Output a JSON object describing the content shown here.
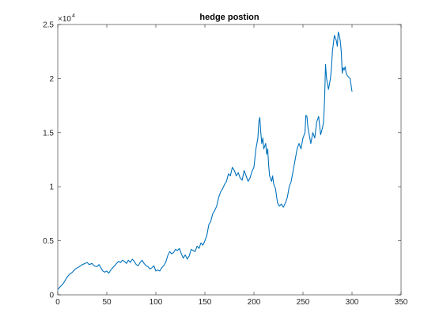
{
  "chart_data": {
    "type": "line",
    "title": "hedge postion",
    "xlabel": "",
    "ylabel": "",
    "xlim": [
      0,
      350
    ],
    "ylim": [
      0,
      25000
    ],
    "xticks": [
      0,
      50,
      100,
      150,
      200,
      250,
      300,
      350
    ],
    "xtick_labels": [
      "0",
      "50",
      "100",
      "150",
      "200",
      "250",
      "300",
      "350"
    ],
    "yticks": [
      0,
      5000,
      10000,
      15000,
      20000,
      25000
    ],
    "ytick_labels": [
      "0",
      "0.5",
      "1",
      "1.5",
      "2",
      "2.5"
    ],
    "y_exponent_label": "×10",
    "y_exponent_power": "4",
    "grid": false,
    "line_color": "#0072BD",
    "series": [
      {
        "x": [
          0,
          2,
          4,
          6,
          8,
          10,
          12,
          15,
          18,
          20,
          22,
          25,
          28,
          30,
          32,
          35,
          37,
          40,
          42,
          44,
          46,
          48,
          50,
          52,
          54,
          56,
          58,
          60,
          62,
          64,
          66,
          68,
          70,
          72,
          74,
          76,
          78,
          80,
          82,
          84,
          86,
          88,
          90,
          92,
          94,
          96,
          98,
          100,
          102,
          104,
          106,
          108,
          110,
          112,
          114,
          116,
          118,
          120,
          122,
          124,
          126,
          128,
          130,
          132,
          134,
          136,
          138,
          140,
          142,
          144,
          146,
          148,
          150,
          152,
          154,
          156,
          158,
          160,
          162,
          164,
          166,
          168,
          170,
          172,
          174,
          176,
          178,
          180,
          182,
          184,
          186,
          188,
          190,
          192,
          194,
          196,
          198,
          200,
          202,
          204,
          205,
          206,
          207,
          208,
          209,
          210,
          212,
          213,
          214,
          215,
          216,
          218,
          219,
          220,
          222,
          224,
          226,
          228,
          230,
          232,
          234,
          236,
          238,
          240,
          242,
          244,
          246,
          248,
          250,
          252,
          253,
          254,
          255,
          256,
          258,
          260,
          262,
          264,
          266,
          268,
          270,
          271,
          272,
          273,
          274,
          276,
          278,
          279,
          280,
          282,
          284,
          285,
          286,
          287,
          288,
          289,
          290,
          291,
          292,
          293,
          294,
          295,
          296,
          298,
          300
        ],
        "y": [
          500,
          700,
          900,
          1100,
          1400,
          1700,
          1900,
          2100,
          2400,
          2500,
          2600,
          2800,
          2900,
          3000,
          2800,
          2900,
          2700,
          2600,
          2800,
          2500,
          2200,
          2100,
          2200,
          2000,
          2300,
          2500,
          2700,
          2900,
          3100,
          3000,
          3200,
          3100,
          2900,
          3200,
          3000,
          3300,
          3100,
          2800,
          2700,
          3000,
          3200,
          2900,
          2700,
          2600,
          2400,
          2500,
          2700,
          2200,
          2300,
          2200,
          2500,
          2700,
          3000,
          3600,
          4000,
          3800,
          3900,
          4200,
          4100,
          4300,
          3800,
          3400,
          3700,
          3300,
          3600,
          4200,
          4100,
          4000,
          4500,
          4300,
          4800,
          4600,
          5000,
          5500,
          6500,
          6800,
          7500,
          7800,
          8200,
          9000,
          9500,
          9800,
          10200,
          10500,
          11200,
          11000,
          11800,
          11500,
          11000,
          11300,
          10800,
          10600,
          11500,
          11000,
          10500,
          10800,
          11400,
          11800,
          13500,
          14500,
          16000,
          16400,
          15000,
          14000,
          14500,
          13500,
          14000,
          13000,
          13500,
          12000,
          11000,
          10500,
          11000,
          10300,
          9800,
          8500,
          8200,
          8400,
          8100,
          8500,
          9000,
          10000,
          10500,
          11500,
          12500,
          13500,
          14000,
          13500,
          14500,
          15000,
          16600,
          16500,
          15500,
          15000,
          14000,
          15000,
          14500,
          16000,
          16500,
          14800,
          15500,
          16000,
          18000,
          21300,
          20000,
          19000,
          20000,
          21000,
          22500,
          24000,
          23500,
          23000,
          24300,
          24000,
          23500,
          22500,
          20500,
          21000,
          20800,
          21100,
          20500,
          20300,
          20200,
          20000,
          18800
        ]
      }
    ]
  }
}
